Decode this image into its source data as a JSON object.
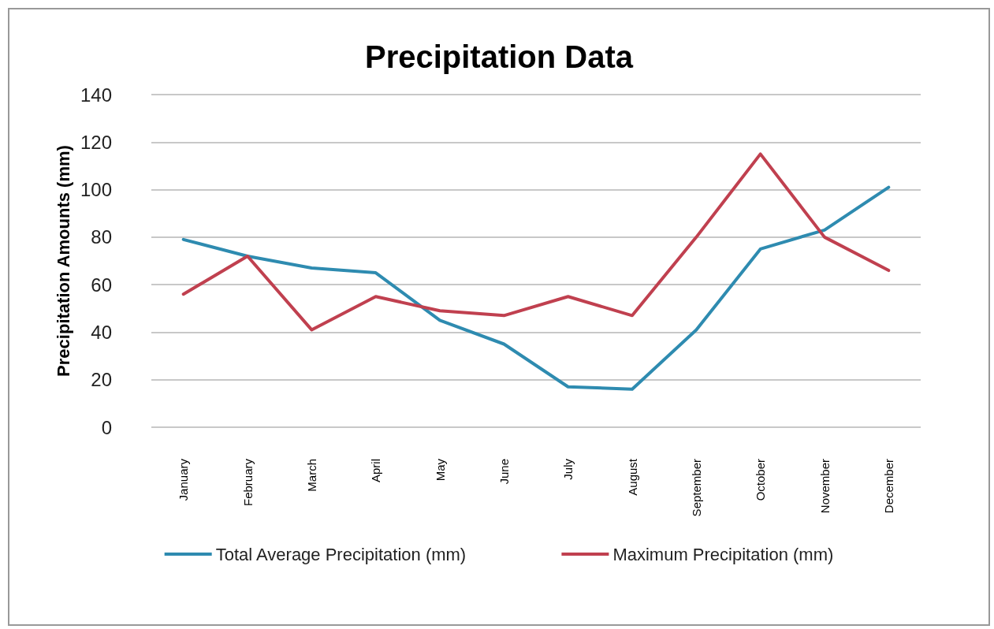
{
  "chart_data": {
    "type": "line",
    "title": "Precipitation Data",
    "ylabel": "Precipitation Amounts (mm)",
    "categories": [
      "January",
      "February",
      "March",
      "April",
      "May",
      "June",
      "July",
      "August",
      "September",
      "October",
      "November",
      "December"
    ],
    "series": [
      {
        "name": "Total Average Precipitation (mm)",
        "color": "#2e8bb0",
        "values": [
          79,
          72,
          67,
          65,
          45,
          35,
          17,
          16,
          41,
          75,
          83,
          101
        ]
      },
      {
        "name": "Maximum Precipitation (mm)",
        "color": "#c0404f",
        "values": [
          56,
          72,
          41,
          55,
          49,
          47,
          55,
          47,
          80,
          115,
          80,
          66
        ]
      }
    ],
    "ylim": [
      0,
      140
    ],
    "yticks": [
      0,
      20,
      40,
      60,
      80,
      100,
      120,
      140
    ],
    "grid": "y",
    "legend": "bottom",
    "marker": "none",
    "line_style": "solid"
  }
}
